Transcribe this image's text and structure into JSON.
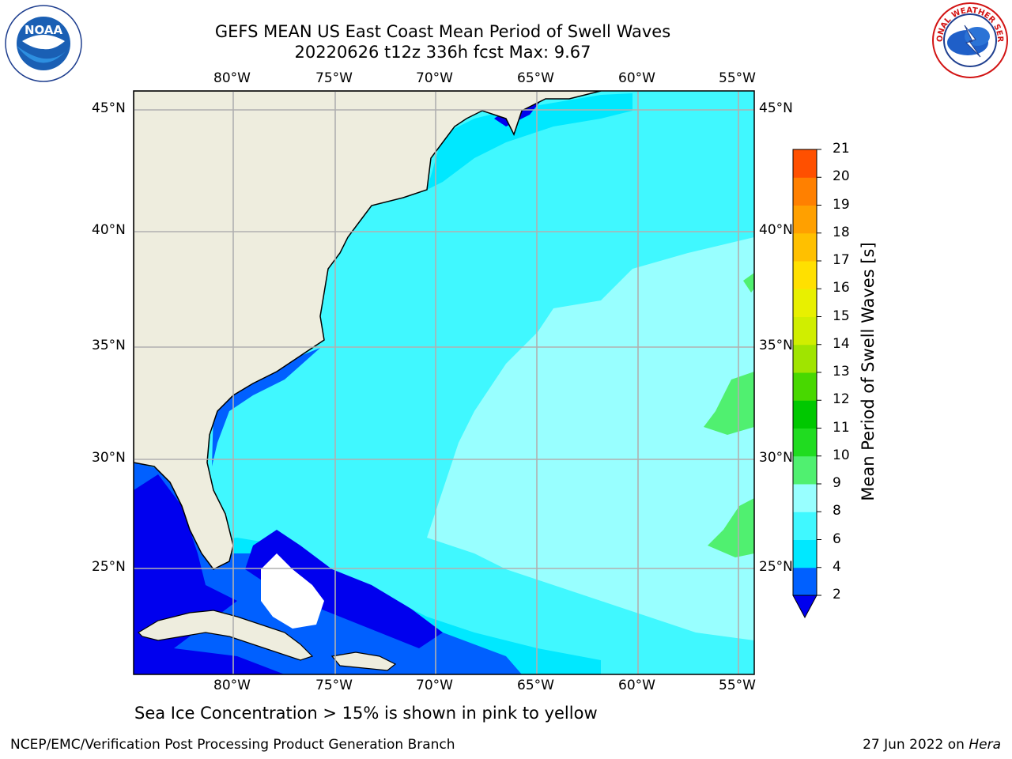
{
  "title_line1": "GEFS MEAN US East Coast Mean Period of Swell Waves",
  "title_line2": "20220626 t12z 336h fcst   Max: 9.67",
  "map": {
    "lon_labels": [
      "80°W",
      "75°W",
      "70°W",
      "65°W",
      "60°W",
      "55°W"
    ],
    "lat_labels": [
      "45°N",
      "40°N",
      "35°N",
      "30°N",
      "25°N"
    ],
    "land_color": "#eeedde",
    "grid_color": "#b0b0b0"
  },
  "colorbar": {
    "label": "Mean Period of Swell Waves [s]",
    "ticks": [
      "2",
      "4",
      "6",
      "8",
      "9",
      "10",
      "11",
      "12",
      "13",
      "14",
      "15",
      "16",
      "17",
      "18",
      "19",
      "20",
      "21"
    ],
    "colors": [
      "#0060ff",
      "#00e8ff",
      "#40f8ff",
      "#98ffff",
      "#50f070",
      "#20dc20",
      "#00c800",
      "#48d800",
      "#a0e400",
      "#d0ee00",
      "#e8f000",
      "#ffe000",
      "#ffc000",
      "#ffa000",
      "#ff8000",
      "#ff5000",
      "#ff2000",
      "#ff0000"
    ],
    "underflow_color": "#0000ee"
  },
  "footer": {
    "note": "Sea Ice Concentration > 15% is shown in pink to yellow",
    "left": "NCEP/EMC/Verification Post Processing Product Generation Branch",
    "right_prefix": "27 Jun 2022 on ",
    "right_host": "Hera"
  },
  "logos": {
    "noaa": "NOAA",
    "nws_text": "NATIONAL WEATHER SERVICE"
  }
}
